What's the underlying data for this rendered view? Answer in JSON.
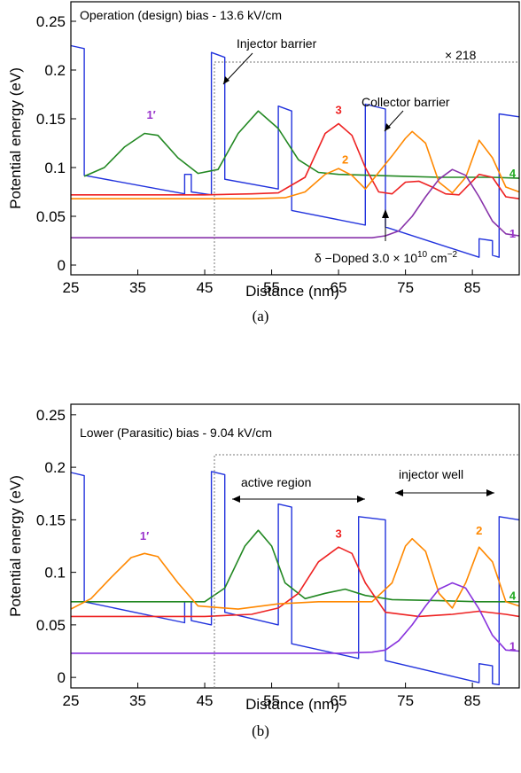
{
  "chart_data": [
    {
      "type": "line",
      "panel": "(a)",
      "annotation_title": "Operation (design) bias - 13.6 kV/cm",
      "xlabel": "Distance (nm)",
      "ylabel": "Potential energy (eV)",
      "xlim": [
        25,
        92
      ],
      "ylim": [
        -0.01,
        0.27
      ],
      "xticks": [
        25,
        35,
        45,
        55,
        65,
        75,
        85
      ],
      "yticks": [
        0,
        0.05,
        0.1,
        0.15,
        0.2,
        0.25
      ],
      "ytick_labels": [
        "0",
        "0.05",
        "0.1",
        "0.15",
        "0.2",
        "0.25"
      ],
      "annotations": {
        "injector": "Injector barrier",
        "collector": "Collector barrier",
        "scale": "× 218",
        "doped_prefix": "δ −Doped 3.0 × 10",
        "doped_exp": "10",
        "doped_unit": " cm",
        "doped_unit_exp": "−2"
      },
      "level_labels": [
        {
          "text": "1′",
          "x": 37,
          "y": 0.15,
          "color": "#9933cc"
        },
        {
          "text": "3",
          "x": 65,
          "y": 0.155,
          "color": "#ee2222"
        },
        {
          "text": "2",
          "x": 66,
          "y": 0.104,
          "color": "#ff8800"
        },
        {
          "text": "4",
          "x": 91,
          "y": 0.09,
          "color": "#22aa22"
        },
        {
          "text": "1",
          "x": 91,
          "y": 0.028,
          "color": "#9933cc"
        }
      ],
      "series": [
        {
          "color": "#2233dd",
          "points": [
            [
              25,
              0.225
            ],
            [
              27,
              0.222
            ],
            [
              27,
              0.092
            ],
            [
              42,
              0.073
            ],
            [
              42,
              0.093
            ],
            [
              43,
              0.093
            ],
            [
              43,
              0.075
            ],
            [
              46,
              0.072
            ],
            [
              46,
              0.218
            ],
            [
              48,
              0.213
            ],
            [
              48,
              0.088
            ],
            [
              56,
              0.078
            ],
            [
              56,
              0.163
            ],
            [
              58,
              0.158
            ],
            [
              58,
              0.056
            ],
            [
              69,
              0.041
            ],
            [
              69,
              0.165
            ],
            [
              72,
              0.16
            ],
            [
              72,
              0.039
            ],
            [
              86,
              0.008
            ],
            [
              86,
              0.027
            ],
            [
              88,
              0.025
            ],
            [
              88,
              0.01
            ],
            [
              89,
              0.008
            ],
            [
              89,
              0.155
            ],
            [
              92,
              0.152
            ]
          ]
        },
        {
          "color": "#228822",
          "points": [
            [
              27,
              0.091
            ],
            [
              30,
              0.1
            ],
            [
              33,
              0.121
            ],
            [
              36,
              0.135
            ],
            [
              38,
              0.133
            ],
            [
              41,
              0.11
            ],
            [
              44,
              0.094
            ],
            [
              47,
              0.098
            ],
            [
              50,
              0.135
            ],
            [
              53,
              0.158
            ],
            [
              56,
              0.14
            ],
            [
              59,
              0.108
            ],
            [
              62,
              0.095
            ],
            [
              65,
              0.093
            ],
            [
              70,
              0.092
            ],
            [
              75,
              0.091
            ],
            [
              80,
              0.09
            ],
            [
              85,
              0.09
            ],
            [
              88,
              0.09
            ],
            [
              92,
              0.089
            ]
          ]
        },
        {
          "color": "#ee2222",
          "points": [
            [
              25,
              0.072
            ],
            [
              35,
              0.072
            ],
            [
              45,
              0.072
            ],
            [
              52,
              0.073
            ],
            [
              56,
              0.074
            ],
            [
              60,
              0.09
            ],
            [
              63,
              0.135
            ],
            [
              65,
              0.145
            ],
            [
              67,
              0.133
            ],
            [
              69,
              0.1
            ],
            [
              71,
              0.075
            ],
            [
              73,
              0.073
            ],
            [
              75,
              0.085
            ],
            [
              77,
              0.086
            ],
            [
              79,
              0.08
            ],
            [
              81,
              0.073
            ],
            [
              83,
              0.072
            ],
            [
              86,
              0.093
            ],
            [
              88,
              0.09
            ],
            [
              90,
              0.07
            ],
            [
              92,
              0.068
            ]
          ]
        },
        {
          "color": "#ff8800",
          "points": [
            [
              25,
              0.068
            ],
            [
              35,
              0.068
            ],
            [
              45,
              0.068
            ],
            [
              52,
              0.068
            ],
            [
              57,
              0.069
            ],
            [
              60,
              0.075
            ],
            [
              63,
              0.093
            ],
            [
              65,
              0.099
            ],
            [
              67,
              0.092
            ],
            [
              69,
              0.078
            ],
            [
              71,
              0.095
            ],
            [
              73,
              0.112
            ],
            [
              75,
              0.13
            ],
            [
              76,
              0.137
            ],
            [
              78,
              0.125
            ],
            [
              80,
              0.085
            ],
            [
              82,
              0.074
            ],
            [
              84,
              0.09
            ],
            [
              86,
              0.128
            ],
            [
              88,
              0.11
            ],
            [
              90,
              0.08
            ],
            [
              92,
              0.075
            ]
          ]
        },
        {
          "color": "#8833aa",
          "points": [
            [
              25,
              0.028
            ],
            [
              40,
              0.028
            ],
            [
              55,
              0.028
            ],
            [
              65,
              0.028
            ],
            [
              70,
              0.028
            ],
            [
              72,
              0.03
            ],
            [
              74,
              0.035
            ],
            [
              76,
              0.05
            ],
            [
              78,
              0.07
            ],
            [
              80,
              0.088
            ],
            [
              82,
              0.098
            ],
            [
              84,
              0.092
            ],
            [
              86,
              0.07
            ],
            [
              88,
              0.045
            ],
            [
              90,
              0.032
            ],
            [
              92,
              0.03
            ]
          ]
        }
      ]
    },
    {
      "type": "line",
      "panel": "(b)",
      "annotation_title": "Lower (Parasitic) bias - 9.04 kV/cm",
      "xlabel": "Distance (nm)",
      "ylabel": "Potential energy (eV)",
      "xlim": [
        25,
        92
      ],
      "ylim": [
        -0.01,
        0.26
      ],
      "xticks": [
        25,
        35,
        45,
        55,
        65,
        75,
        85
      ],
      "yticks": [
        0,
        0.05,
        0.1,
        0.15,
        0.2,
        0.25
      ],
      "ytick_labels": [
        "0",
        "0.05",
        "0.1",
        "0.15",
        "0.2",
        "0.25"
      ],
      "annotations": {
        "active": "active region",
        "injector_well": "injector well"
      },
      "level_labels": [
        {
          "text": "1′",
          "x": 36,
          "y": 0.131,
          "color": "#9933cc"
        },
        {
          "text": "3",
          "x": 65,
          "y": 0.133,
          "color": "#ee2222"
        },
        {
          "text": "2",
          "x": 86,
          "y": 0.136,
          "color": "#ff8800"
        },
        {
          "text": "4",
          "x": 91,
          "y": 0.074,
          "color": "#22aa22"
        },
        {
          "text": "1",
          "x": 91,
          "y": 0.026,
          "color": "#9933cc"
        }
      ],
      "series": [
        {
          "color": "#2233dd",
          "points": [
            [
              25,
              0.195
            ],
            [
              27,
              0.192
            ],
            [
              27,
              0.072
            ],
            [
              42,
              0.052
            ],
            [
              42,
              0.072
            ],
            [
              43,
              0.072
            ],
            [
              43,
              0.054
            ],
            [
              46,
              0.05
            ],
            [
              46,
              0.196
            ],
            [
              48,
              0.193
            ],
            [
              48,
              0.062
            ],
            [
              56,
              0.05
            ],
            [
              56,
              0.165
            ],
            [
              58,
              0.162
            ],
            [
              58,
              0.032
            ],
            [
              68,
              0.018
            ],
            [
              68,
              0.153
            ],
            [
              72,
              0.15
            ],
            [
              72,
              0.016
            ],
            [
              86,
              -0.005
            ],
            [
              86,
              0.013
            ],
            [
              88,
              0.011
            ],
            [
              88,
              -0.006
            ],
            [
              89,
              -0.007
            ],
            [
              89,
              0.153
            ],
            [
              92,
              0.15
            ]
          ]
        },
        {
          "color": "#228822",
          "points": [
            [
              25,
              0.072
            ],
            [
              35,
              0.072
            ],
            [
              45,
              0.072
            ],
            [
              48,
              0.085
            ],
            [
              51,
              0.125
            ],
            [
              53,
              0.14
            ],
            [
              55,
              0.125
            ],
            [
              57,
              0.09
            ],
            [
              60,
              0.075
            ],
            [
              63,
              0.08
            ],
            [
              66,
              0.084
            ],
            [
              69,
              0.078
            ],
            [
              73,
              0.074
            ],
            [
              80,
              0.073
            ],
            [
              86,
              0.072
            ],
            [
              92,
              0.072
            ]
          ]
        },
        {
          "color": "#ee2222",
          "points": [
            [
              25,
              0.058
            ],
            [
              35,
              0.058
            ],
            [
              45,
              0.058
            ],
            [
              52,
              0.06
            ],
            [
              56,
              0.066
            ],
            [
              59,
              0.08
            ],
            [
              62,
              0.11
            ],
            [
              65,
              0.124
            ],
            [
              67,
              0.118
            ],
            [
              69,
              0.09
            ],
            [
              72,
              0.062
            ],
            [
              77,
              0.058
            ],
            [
              82,
              0.06
            ],
            [
              86,
              0.063
            ],
            [
              90,
              0.06
            ],
            [
              92,
              0.058
            ]
          ]
        },
        {
          "color": "#ff8800",
          "points": [
            [
              25,
              0.065
            ],
            [
              28,
              0.075
            ],
            [
              31,
              0.095
            ],
            [
              34,
              0.114
            ],
            [
              36,
              0.118
            ],
            [
              38,
              0.115
            ],
            [
              41,
              0.09
            ],
            [
              44,
              0.068
            ],
            [
              50,
              0.065
            ],
            [
              56,
              0.07
            ],
            [
              62,
              0.072
            ],
            [
              66,
              0.072
            ],
            [
              70,
              0.072
            ],
            [
              73,
              0.09
            ],
            [
              75,
              0.125
            ],
            [
              76,
              0.132
            ],
            [
              78,
              0.12
            ],
            [
              80,
              0.08
            ],
            [
              82,
              0.066
            ],
            [
              84,
              0.09
            ],
            [
              86,
              0.124
            ],
            [
              88,
              0.11
            ],
            [
              90,
              0.072
            ],
            [
              92,
              0.068
            ]
          ]
        },
        {
          "color": "#8833dd",
          "points": [
            [
              25,
              0.023
            ],
            [
              40,
              0.023
            ],
            [
              55,
              0.023
            ],
            [
              65,
              0.023
            ],
            [
              70,
              0.024
            ],
            [
              72,
              0.026
            ],
            [
              74,
              0.035
            ],
            [
              76,
              0.05
            ],
            [
              78,
              0.068
            ],
            [
              80,
              0.084
            ],
            [
              82,
              0.09
            ],
            [
              84,
              0.085
            ],
            [
              86,
              0.065
            ],
            [
              88,
              0.04
            ],
            [
              90,
              0.026
            ],
            [
              92,
              0.025
            ]
          ]
        }
      ]
    }
  ]
}
